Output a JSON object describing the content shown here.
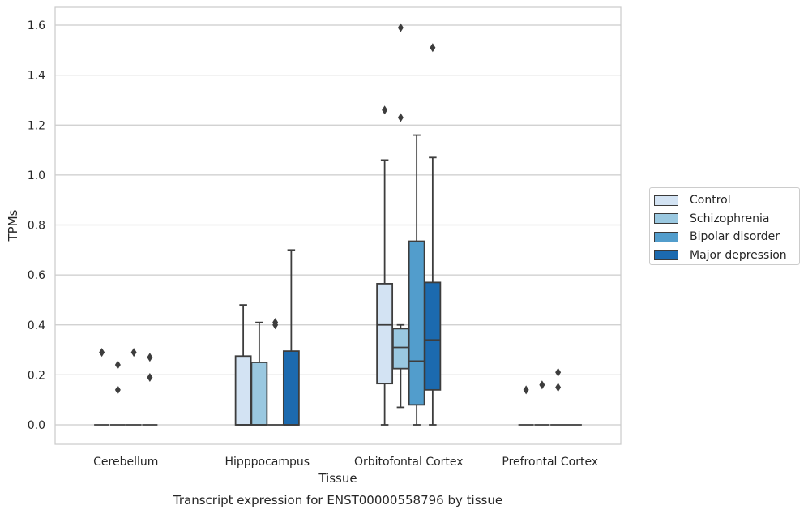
{
  "chart_data": {
    "type": "box",
    "xlabel": "Tissue",
    "ylabel": "TPMs",
    "caption": "Transcript expression for ENST00000558796 by tissue",
    "ylim": [
      -0.08,
      1.67
    ],
    "yticks": [
      "0.0",
      "0.2",
      "0.4",
      "0.6",
      "0.8",
      "1.0",
      "1.2",
      "1.4",
      "1.6"
    ],
    "ytick_values": [
      0.0,
      0.2,
      0.4,
      0.6,
      0.8,
      1.0,
      1.2,
      1.4,
      1.6
    ],
    "grid": "horizontal",
    "legend_position": "right",
    "categories": [
      "Cerebellum",
      "Hipppocampus",
      "Orbitofontal Cortex",
      "Prefrontal Cortex"
    ],
    "series": [
      {
        "name": "Control",
        "color": "#d3e3f3",
        "boxes": [
          {
            "min": 0,
            "q1": 0,
            "median": 0,
            "q3": 0,
            "max": 0,
            "outliers": [
              0.29
            ]
          },
          {
            "min": 0,
            "q1": 0,
            "median": 0,
            "q3": 0.275,
            "max": 0.48,
            "outliers": []
          },
          {
            "min": 0,
            "q1": 0.165,
            "median": 0.4,
            "q3": 0.565,
            "max": 1.06,
            "outliers": [
              1.26
            ]
          },
          {
            "min": 0,
            "q1": 0,
            "median": 0,
            "q3": 0,
            "max": 0,
            "outliers": [
              0.14
            ]
          }
        ]
      },
      {
        "name": "Schizophrenia",
        "color": "#9ac8e0",
        "boxes": [
          {
            "min": 0,
            "q1": 0,
            "median": 0,
            "q3": 0,
            "max": 0,
            "outliers": [
              0.24,
              0.14
            ]
          },
          {
            "min": 0,
            "q1": 0,
            "median": 0,
            "q3": 0.25,
            "max": 0.41,
            "outliers": []
          },
          {
            "min": 0.07,
            "q1": 0.225,
            "median": 0.31,
            "q3": 0.385,
            "max": 0.4,
            "outliers": [
              1.59,
              1.23
            ]
          },
          {
            "min": 0,
            "q1": 0,
            "median": 0,
            "q3": 0,
            "max": 0,
            "outliers": [
              0.16
            ]
          }
        ]
      },
      {
        "name": "Bipolar disorder",
        "color": "#529dcc",
        "boxes": [
          {
            "min": 0,
            "q1": 0,
            "median": 0,
            "q3": 0,
            "max": 0,
            "outliers": [
              0.29
            ]
          },
          {
            "min": 0,
            "q1": 0,
            "median": 0,
            "q3": 0,
            "max": 0,
            "outliers": [
              0.41,
              0.4
            ]
          },
          {
            "min": 0,
            "q1": 0.08,
            "median": 0.255,
            "q3": 0.735,
            "max": 1.16,
            "outliers": []
          },
          {
            "min": 0,
            "q1": 0,
            "median": 0,
            "q3": 0,
            "max": 0,
            "outliers": [
              0.21,
              0.15
            ]
          }
        ]
      },
      {
        "name": "Major depression",
        "color": "#1c6aaf",
        "boxes": [
          {
            "min": 0,
            "q1": 0,
            "median": 0,
            "q3": 0,
            "max": 0,
            "outliers": [
              0.27,
              0.19
            ]
          },
          {
            "min": 0,
            "q1": 0,
            "median": 0,
            "q3": 0.295,
            "max": 0.7,
            "outliers": []
          },
          {
            "min": 0,
            "q1": 0.14,
            "median": 0.34,
            "q3": 0.57,
            "max": 1.07,
            "outliers": [
              1.51
            ]
          },
          {
            "min": 0,
            "q1": 0,
            "median": 0,
            "q3": 0,
            "max": 0,
            "outliers": []
          }
        ]
      }
    ]
  }
}
